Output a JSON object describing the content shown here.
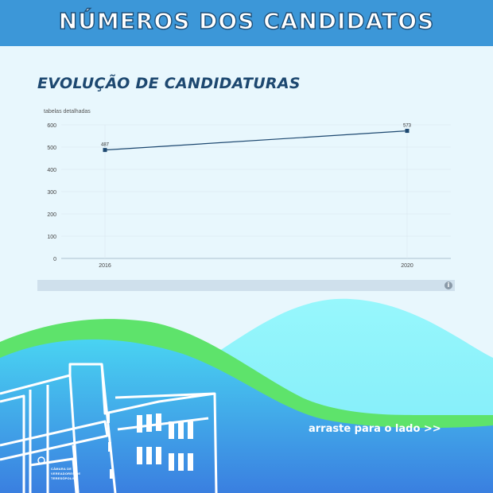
{
  "header": {
    "title": "NÚMEROS DOS CANDIDATOS"
  },
  "section": {
    "title": "EVOLUÇÃO DE CANDIDATURAS"
  },
  "chart_data": {
    "type": "line",
    "caption": "tabelas detalhadas",
    "x": [
      "2016",
      "2020"
    ],
    "y": [
      487,
      573
    ],
    "point_labels": [
      "487",
      "573"
    ],
    "ylim": [
      0,
      600
    ],
    "yticks": [
      "0",
      "100",
      "200",
      "300",
      "400",
      "500",
      "600"
    ],
    "grid": true,
    "line_color": "#1d4870"
  },
  "info": {
    "icon": "info-icon",
    "glyph": "i"
  },
  "footer": {
    "swipe_label": "arraste para o lado >>",
    "building_sign": [
      "CÂMARA DE",
      "VEREADORES DE",
      "TERESÓPOLIS"
    ]
  },
  "colors": {
    "header": "#3c97d8",
    "background": "#e8f7fd",
    "accent_green": "#5de06a",
    "wave_cyan": "#8ff2fb",
    "bottom_blue": "#3a8ae0"
  }
}
